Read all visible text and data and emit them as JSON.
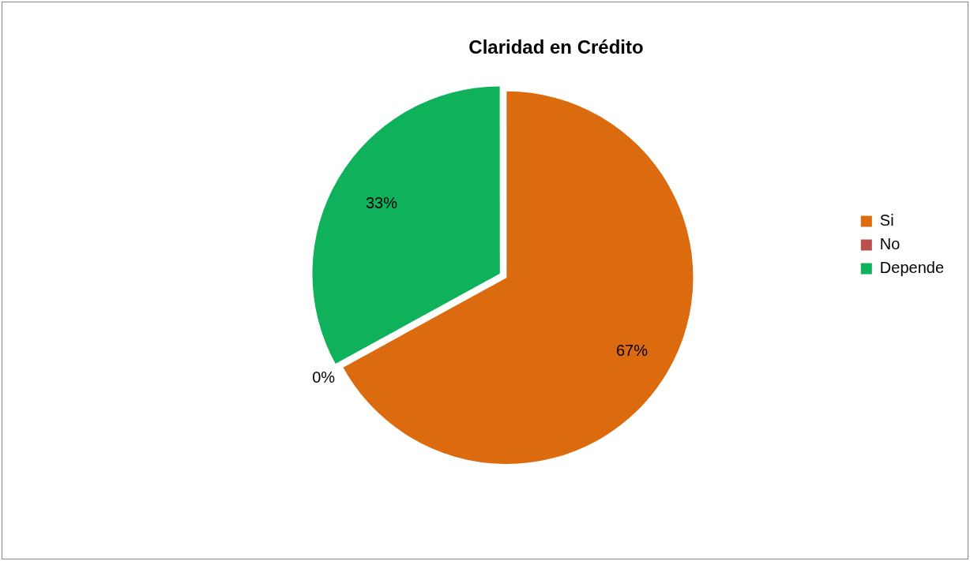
{
  "chart_data": {
    "type": "pie",
    "title": "Claridad en Crédito",
    "categories": [
      "Si",
      "No",
      "Depende"
    ],
    "values": [
      67,
      0,
      33
    ],
    "value_labels": [
      "67%",
      "0%",
      "33%"
    ],
    "colors": [
      "#dc6a0e",
      "#b9504d",
      "#0fb15a"
    ],
    "legend": "right"
  }
}
